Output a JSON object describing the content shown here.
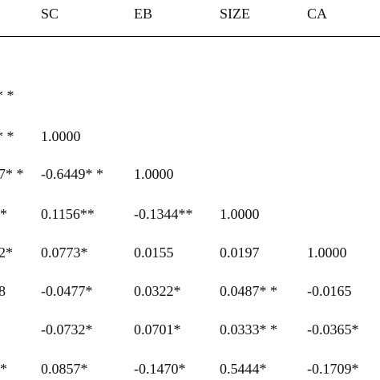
{
  "table": {
    "headers": [
      "SC",
      "EB",
      "SIZE",
      "CA"
    ],
    "rows": [
      {
        "left_fragment": "* *",
        "cells": [
          "",
          "",
          "",
          ""
        ]
      },
      {
        "left_fragment": "* *",
        "cells": [
          "1.0000",
          "",
          "",
          ""
        ]
      },
      {
        "left_fragment": "7* *",
        "cells": [
          "-0.6449* *",
          "1.0000",
          "",
          ""
        ]
      },
      {
        "left_fragment": "*",
        "cells": [
          "0.1156**",
          "-0.1344**",
          "1.0000",
          ""
        ]
      },
      {
        "left_fragment": "2*",
        "cells": [
          "0.0773*",
          "0.0155",
          "0.0197",
          "1.0000"
        ]
      },
      {
        "left_fragment": "8",
        "cells": [
          "-0.0477*",
          "0.0322*",
          "0.0487* *",
          "-0.0165"
        ]
      },
      {
        "left_fragment": "",
        "cells": [
          "-0.0732*",
          "0.0701*",
          "0.0333* *",
          "-0.0365*"
        ]
      },
      {
        "left_fragment": "*",
        "cells": [
          "0.0857*",
          "-0.1470*",
          "0.5444*",
          "-0.1709*"
        ]
      }
    ]
  }
}
